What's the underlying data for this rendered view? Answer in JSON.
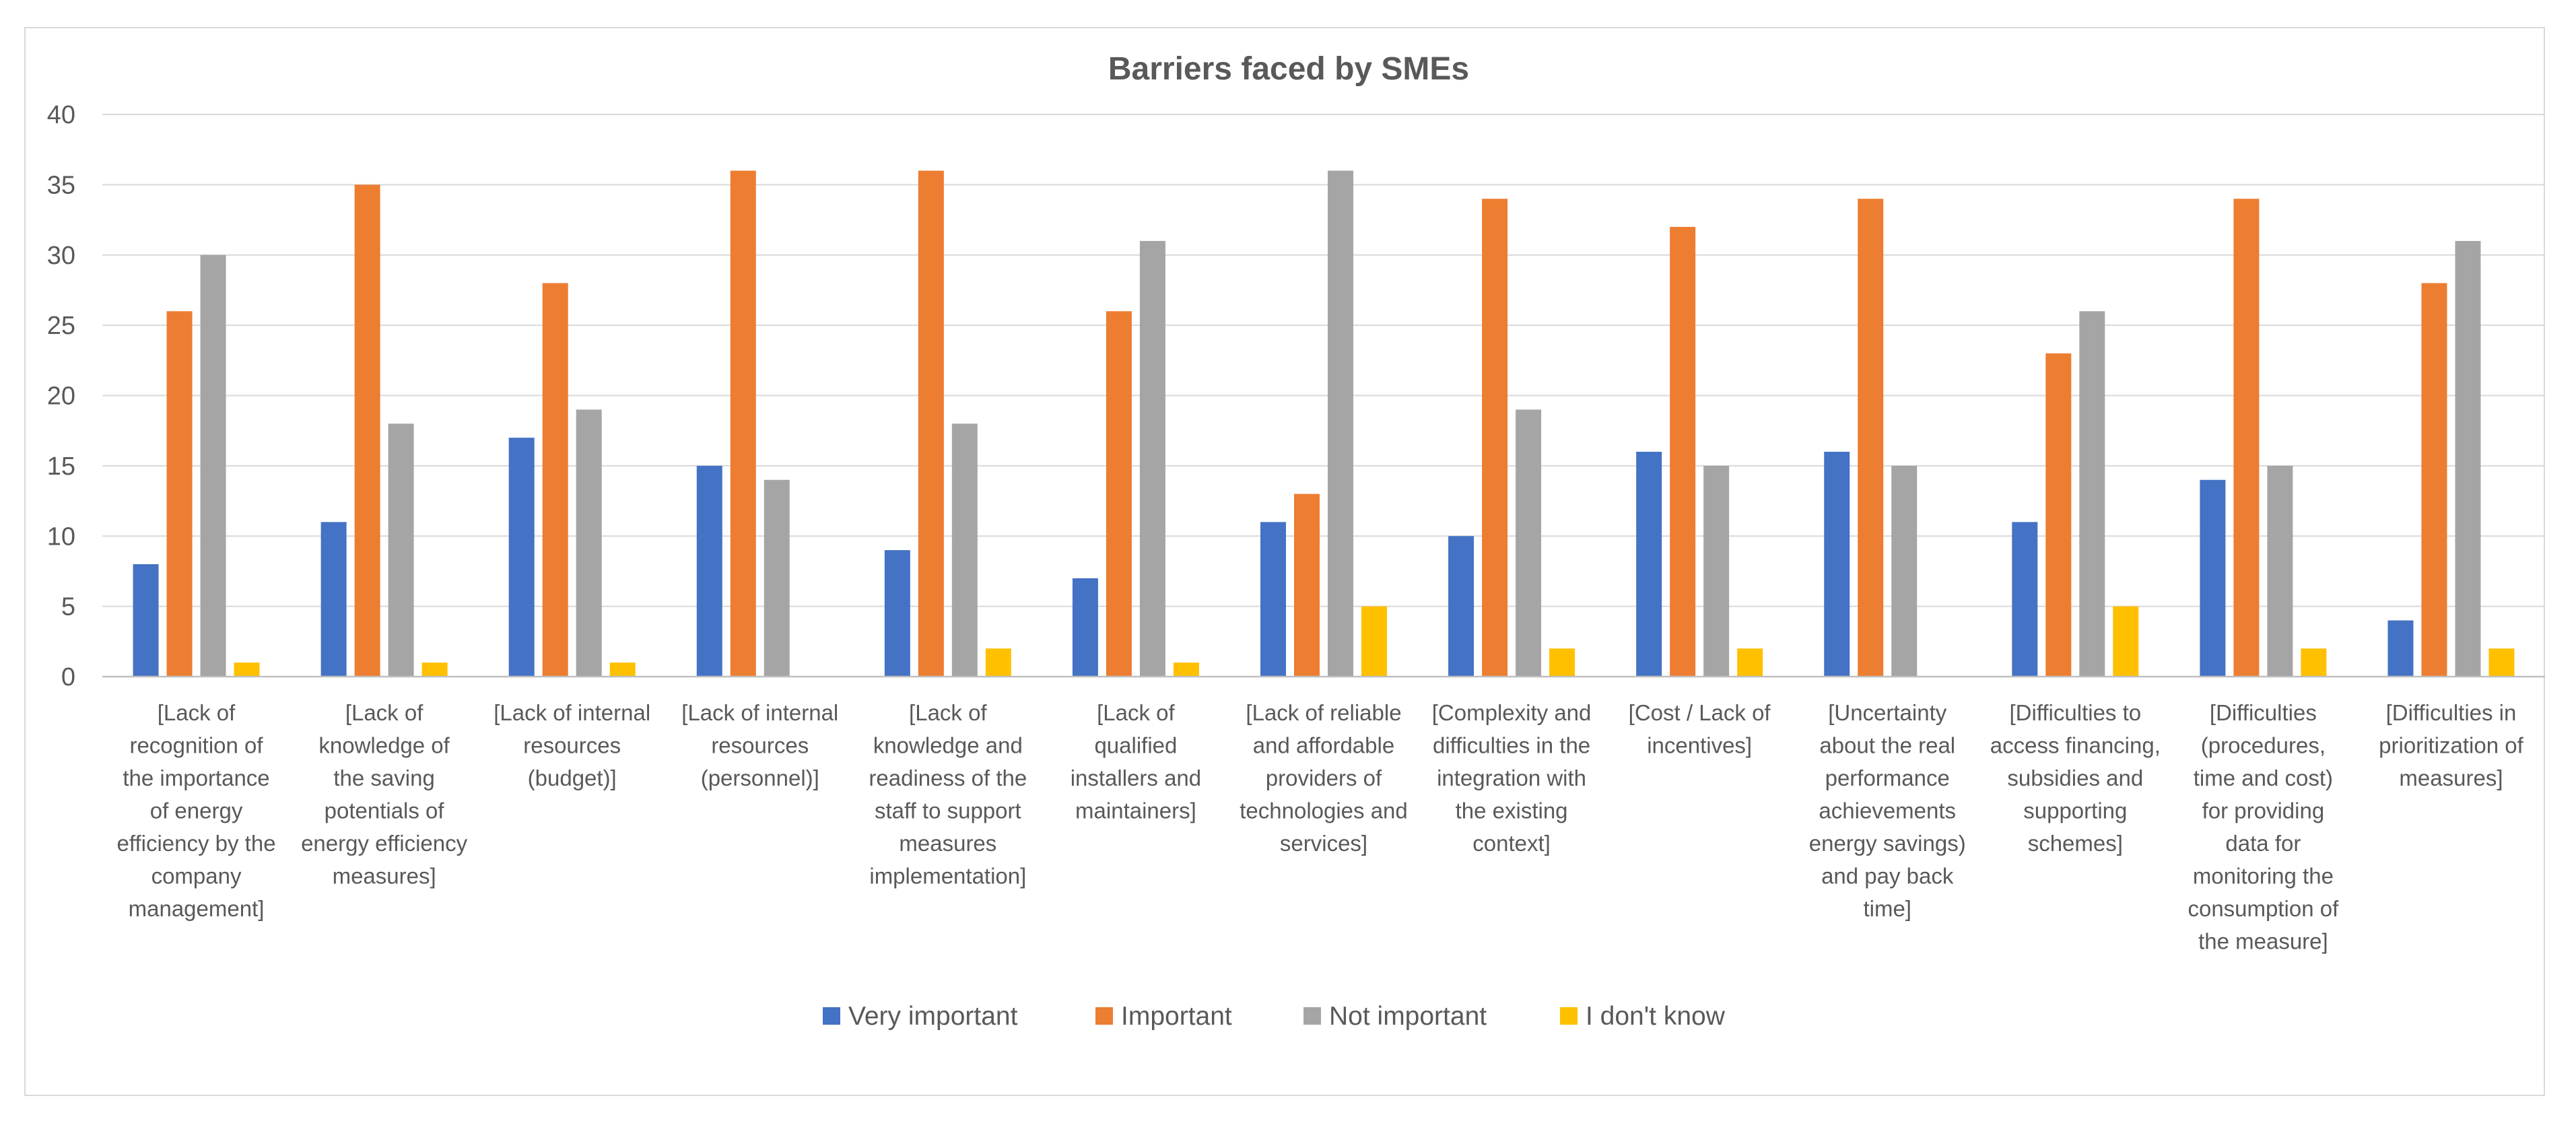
{
  "chart_data": {
    "type": "bar",
    "title": "Barriers faced by SMEs",
    "xlabel": "",
    "ylabel": "",
    "ylim": [
      0,
      40
    ],
    "yticks": [
      0,
      5,
      10,
      15,
      20,
      25,
      30,
      35,
      40
    ],
    "grid": true,
    "legend_position": "bottom",
    "categories": [
      [
        "[Lack of",
        "recognition of",
        "the importance",
        "of energy",
        "efficiency by the",
        "company",
        "management]"
      ],
      [
        "[Lack of",
        "knowledge of",
        "the saving",
        "potentials of",
        "energy efficiency",
        "measures]"
      ],
      [
        "[Lack of internal",
        "resources",
        "(budget)]"
      ],
      [
        "[Lack of internal",
        "resources",
        "(personnel)]"
      ],
      [
        "[Lack of",
        "knowledge and",
        "readiness of the",
        "staff to support",
        "measures",
        "implementation]"
      ],
      [
        "[Lack of",
        "qualified",
        "installers and",
        "maintainers]"
      ],
      [
        "[Lack of reliable",
        "and affordable",
        "providers of",
        "technologies and",
        "services]"
      ],
      [
        "[Complexity and",
        "difficulties in the",
        "integration with",
        "the existing",
        "context]"
      ],
      [
        "[Cost / Lack of",
        "incentives]"
      ],
      [
        "[Uncertainty",
        "about the real",
        "performance",
        "achievements",
        "energy savings)",
        "and pay back",
        "time]"
      ],
      [
        "[Difficulties to",
        "access financing,",
        "subsidies and",
        "supporting",
        "schemes]"
      ],
      [
        "[Difficulties",
        "(procedures,",
        "time and cost)",
        "for providing",
        "data for",
        "monitoring the",
        "consumption of",
        "the measure]"
      ],
      [
        "[Difficulties in",
        "prioritization of",
        "measures]"
      ]
    ],
    "series": [
      {
        "name": "Very important",
        "color": "#4472c4",
        "values": [
          8,
          11,
          17,
          15,
          9,
          7,
          11,
          10,
          16,
          16,
          11,
          14,
          4
        ]
      },
      {
        "name": "Important",
        "color": "#ed7d31",
        "values": [
          26,
          35,
          28,
          36,
          36,
          26,
          13,
          34,
          32,
          34,
          23,
          34,
          28
        ]
      },
      {
        "name": "Not important",
        "color": "#a5a5a5",
        "values": [
          30,
          18,
          19,
          14,
          18,
          31,
          36,
          19,
          15,
          15,
          26,
          15,
          31
        ]
      },
      {
        "name": "I don't know",
        "color": "#ffc000",
        "values": [
          1,
          1,
          1,
          0,
          2,
          1,
          5,
          2,
          2,
          0,
          5,
          2,
          2
        ]
      }
    ]
  }
}
